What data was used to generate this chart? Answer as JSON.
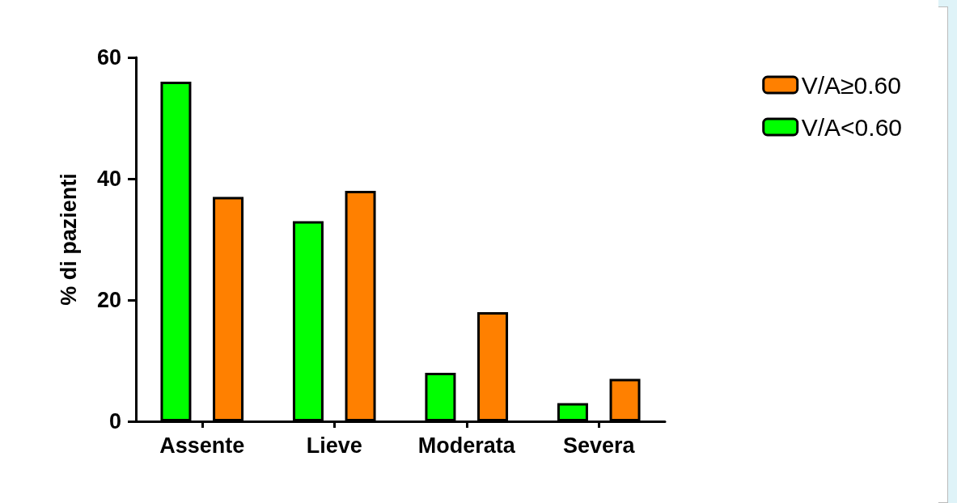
{
  "chart_data": {
    "type": "bar",
    "ylabel": "% di pazienti",
    "categories": [
      "Assente",
      "Lieve",
      "Moderata",
      "Severa"
    ],
    "series": [
      {
        "name": "V/A<0.60",
        "color": "#00ff00",
        "values": [
          56,
          33,
          8,
          3
        ]
      },
      {
        "name": "V/A≥0.60",
        "color": "#ff8000",
        "values": [
          37,
          38,
          18,
          7
        ]
      }
    ],
    "ylim": [
      0,
      60
    ],
    "yticks": [
      0,
      20,
      40,
      60
    ],
    "grid": false,
    "legend": "top right"
  }
}
